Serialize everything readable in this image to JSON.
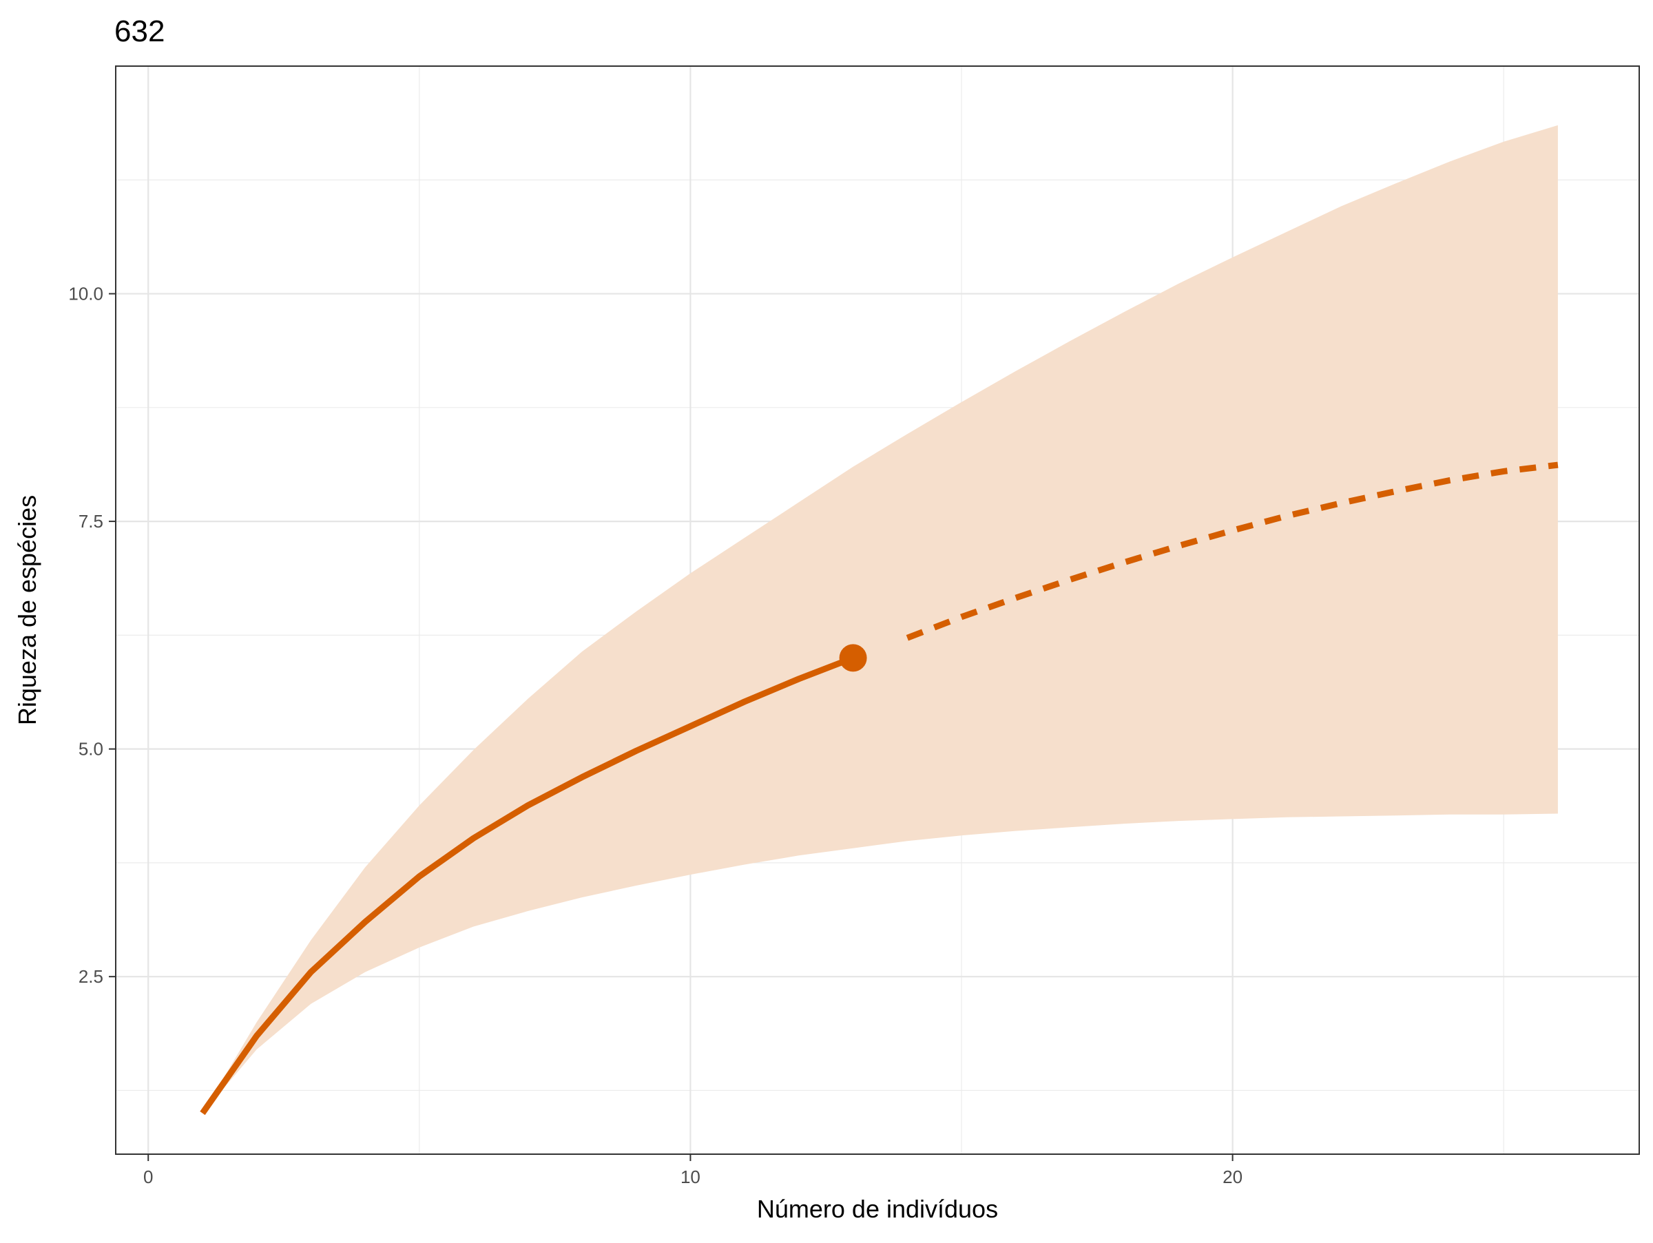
{
  "chart_data": {
    "type": "line",
    "title": "632",
    "xlabel": "Número de indivíduos",
    "ylabel": "Riqueza de espécies",
    "xlim": [
      -0.6,
      27.5
    ],
    "ylim": [
      0.55,
      12.5
    ],
    "x_ticks": [
      0,
      10,
      20
    ],
    "x_tick_labels": [
      "0",
      "10",
      "20"
    ],
    "y_ticks": [
      2.5,
      5.0,
      7.5,
      10.0
    ],
    "y_tick_labels": [
      "2.5",
      "5.0",
      "7.5",
      "10.0"
    ],
    "grid": true,
    "legend": "none",
    "color": "#d55e00",
    "band_color": "#f6dfcc",
    "interpolated": {
      "x": [
        1,
        2,
        3,
        4,
        5,
        6,
        7,
        8,
        9,
        10,
        11,
        12,
        13
      ],
      "y": [
        1.0,
        1.85,
        2.55,
        3.1,
        3.6,
        4.02,
        4.38,
        4.69,
        4.98,
        5.25,
        5.52,
        5.77,
        6.0
      ]
    },
    "observed": {
      "x": 13,
      "y": 6.0
    },
    "extrapolated": {
      "x": [
        14,
        15,
        16,
        17,
        18,
        19,
        20,
        21,
        22,
        23,
        24,
        25,
        26
      ],
      "y": [
        6.22,
        6.45,
        6.66,
        6.86,
        7.05,
        7.23,
        7.4,
        7.56,
        7.7,
        7.83,
        7.95,
        8.05,
        8.12
      ]
    },
    "confidence_band": {
      "x": [
        1,
        2,
        3,
        4,
        5,
        6,
        7,
        8,
        9,
        10,
        11,
        12,
        13,
        14,
        15,
        16,
        17,
        18,
        19,
        20,
        21,
        22,
        23,
        24,
        25,
        26
      ],
      "lower": [
        1.0,
        1.7,
        2.2,
        2.55,
        2.82,
        3.05,
        3.22,
        3.37,
        3.5,
        3.62,
        3.73,
        3.83,
        3.91,
        3.99,
        4.05,
        4.1,
        4.14,
        4.18,
        4.21,
        4.23,
        4.25,
        4.26,
        4.27,
        4.28,
        4.28,
        4.29
      ],
      "upper": [
        1.0,
        2.0,
        2.9,
        3.7,
        4.38,
        4.99,
        5.55,
        6.07,
        6.51,
        6.93,
        7.32,
        7.71,
        8.1,
        8.46,
        8.81,
        9.15,
        9.48,
        9.8,
        10.11,
        10.4,
        10.68,
        10.96,
        11.21,
        11.45,
        11.67,
        11.85
      ]
    }
  }
}
